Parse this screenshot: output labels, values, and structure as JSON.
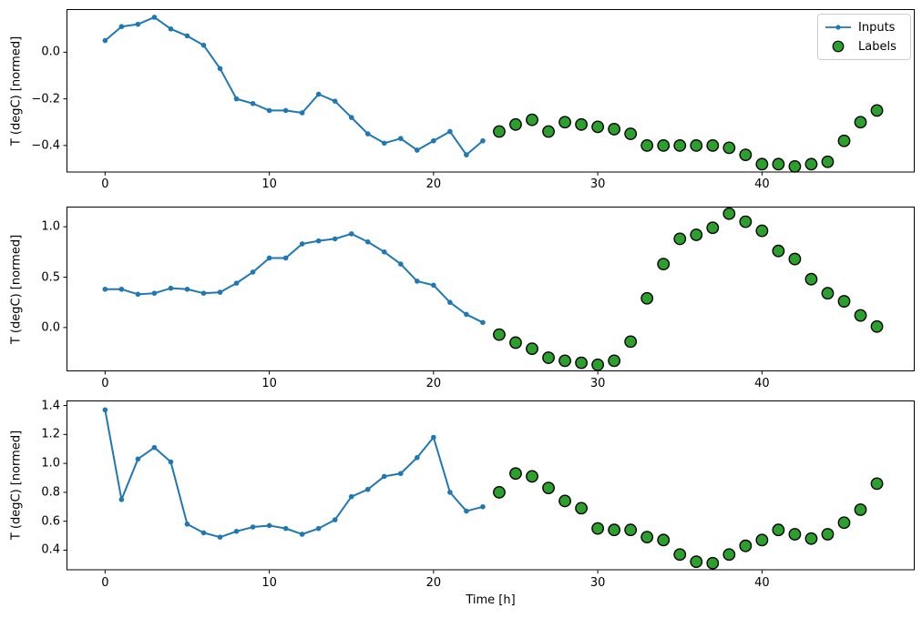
{
  "figure": {
    "xlabel": "Time [h]",
    "ylabel": "T (degC) [normed]",
    "colors": {
      "inputs": "#1f77b4",
      "labels_fill": "#2ca02c",
      "labels_edge": "#000000",
      "spine": "#000000"
    },
    "legend": {
      "position": "upper-right",
      "items": [
        {
          "label": "Inputs",
          "type": "line-marker",
          "color": "#1f77b4"
        },
        {
          "label": "Labels",
          "type": "scatter",
          "color": "#2ca02c"
        }
      ]
    }
  },
  "chart_data": [
    {
      "type": "line",
      "ylabel": "T (degC) [normed]",
      "xlim": [
        -2.35,
        49.3
      ],
      "ylim": [
        -0.515,
        0.185
      ],
      "grid": false,
      "xticks": {
        "values": [
          0,
          10,
          20,
          30,
          40
        ],
        "labels": [
          "0",
          "10",
          "20",
          "30",
          "40"
        ]
      },
      "yticks": {
        "values": [
          0.0,
          -0.2,
          -0.4
        ],
        "labels": [
          "0.0",
          "−0.2",
          "−0.4"
        ]
      },
      "series": [
        {
          "name": "Inputs",
          "type": "line",
          "x": [
            0,
            1,
            2,
            3,
            4,
            5,
            6,
            7,
            8,
            9,
            10,
            11,
            12,
            13,
            14,
            15,
            16,
            17,
            18,
            19,
            20,
            21,
            22,
            23
          ],
          "y": [
            0.05,
            0.11,
            0.12,
            0.15,
            0.1,
            0.07,
            0.03,
            -0.07,
            -0.2,
            -0.22,
            -0.25,
            -0.25,
            -0.26,
            -0.18,
            -0.21,
            -0.28,
            -0.35,
            -0.39,
            -0.37,
            -0.42,
            -0.38,
            -0.34,
            -0.44,
            -0.38
          ]
        },
        {
          "name": "Labels",
          "type": "scatter",
          "x": [
            24,
            25,
            26,
            27,
            28,
            29,
            30,
            31,
            32,
            33,
            34,
            35,
            36,
            37,
            38,
            39,
            40,
            41,
            42,
            43,
            44,
            45,
            46,
            47
          ],
          "y": [
            -0.34,
            -0.31,
            -0.29,
            -0.34,
            -0.3,
            -0.31,
            -0.32,
            -0.33,
            -0.35,
            -0.4,
            -0.4,
            -0.4,
            -0.4,
            -0.4,
            -0.41,
            -0.44,
            -0.48,
            -0.48,
            -0.49,
            -0.48,
            -0.47,
            -0.38,
            -0.3,
            -0.25
          ]
        }
      ]
    },
    {
      "type": "line",
      "ylabel": "T (degC) [normed]",
      "xlim": [
        -2.35,
        49.3
      ],
      "ylim": [
        -0.435,
        1.2
      ],
      "grid": false,
      "xticks": {
        "values": [
          0,
          10,
          20,
          30,
          40
        ],
        "labels": [
          "0",
          "10",
          "20",
          "30",
          "40"
        ]
      },
      "yticks": {
        "values": [
          1.0,
          0.5,
          0.0
        ],
        "labels": [
          "1.0",
          "0.5",
          "0.0"
        ]
      },
      "series": [
        {
          "name": "Inputs",
          "type": "line",
          "x": [
            0,
            1,
            2,
            3,
            4,
            5,
            6,
            7,
            8,
            9,
            10,
            11,
            12,
            13,
            14,
            15,
            16,
            17,
            18,
            19,
            20,
            21,
            22,
            23
          ],
          "y": [
            0.38,
            0.38,
            0.33,
            0.34,
            0.39,
            0.38,
            0.34,
            0.35,
            0.44,
            0.55,
            0.69,
            0.69,
            0.83,
            0.86,
            0.88,
            0.93,
            0.85,
            0.75,
            0.63,
            0.46,
            0.42,
            0.25,
            0.13,
            0.05
          ]
        },
        {
          "name": "Labels",
          "type": "scatter",
          "x": [
            24,
            25,
            26,
            27,
            28,
            29,
            30,
            31,
            32,
            33,
            34,
            35,
            36,
            37,
            38,
            39,
            40,
            41,
            42,
            43,
            44,
            45,
            46,
            47
          ],
          "y": [
            -0.07,
            -0.15,
            -0.21,
            -0.3,
            -0.33,
            -0.35,
            -0.37,
            -0.33,
            -0.14,
            0.29,
            0.63,
            0.88,
            0.92,
            0.99,
            1.13,
            1.05,
            0.96,
            0.76,
            0.68,
            0.48,
            0.34,
            0.26,
            0.12,
            0.01
          ]
        }
      ]
    },
    {
      "type": "line",
      "ylabel": "T (degC) [normed]",
      "xlabel": "Time [h]",
      "xlim": [
        -2.35,
        49.3
      ],
      "ylim": [
        0.26,
        1.435
      ],
      "grid": false,
      "xticks": {
        "values": [
          0,
          10,
          20,
          30,
          40
        ],
        "labels": [
          "0",
          "10",
          "20",
          "30",
          "40"
        ]
      },
      "yticks": {
        "values": [
          1.4,
          1.2,
          1.0,
          0.8,
          0.6,
          0.4
        ],
        "labels": [
          "1.4",
          "1.2",
          "1.0",
          "0.8",
          "0.6",
          "0.4"
        ]
      },
      "series": [
        {
          "name": "Inputs",
          "type": "line",
          "x": [
            0,
            1,
            2,
            3,
            4,
            5,
            6,
            7,
            8,
            9,
            10,
            11,
            12,
            13,
            14,
            15,
            16,
            17,
            18,
            19,
            20,
            21,
            22,
            23
          ],
          "y": [
            1.37,
            0.75,
            1.03,
            1.11,
            1.01,
            0.58,
            0.52,
            0.49,
            0.53,
            0.56,
            0.57,
            0.55,
            0.51,
            0.55,
            0.61,
            0.77,
            0.82,
            0.91,
            0.93,
            1.04,
            1.18,
            0.8,
            0.67,
            0.7
          ]
        },
        {
          "name": "Labels",
          "type": "scatter",
          "x": [
            24,
            25,
            26,
            27,
            28,
            29,
            30,
            31,
            32,
            33,
            34,
            35,
            36,
            37,
            38,
            39,
            40,
            41,
            42,
            43,
            44,
            45,
            46,
            47
          ],
          "y": [
            0.8,
            0.93,
            0.91,
            0.83,
            0.74,
            0.69,
            0.55,
            0.54,
            0.54,
            0.49,
            0.47,
            0.37,
            0.32,
            0.31,
            0.37,
            0.43,
            0.47,
            0.54,
            0.51,
            0.48,
            0.51,
            0.59,
            0.68,
            0.86
          ]
        }
      ]
    }
  ]
}
